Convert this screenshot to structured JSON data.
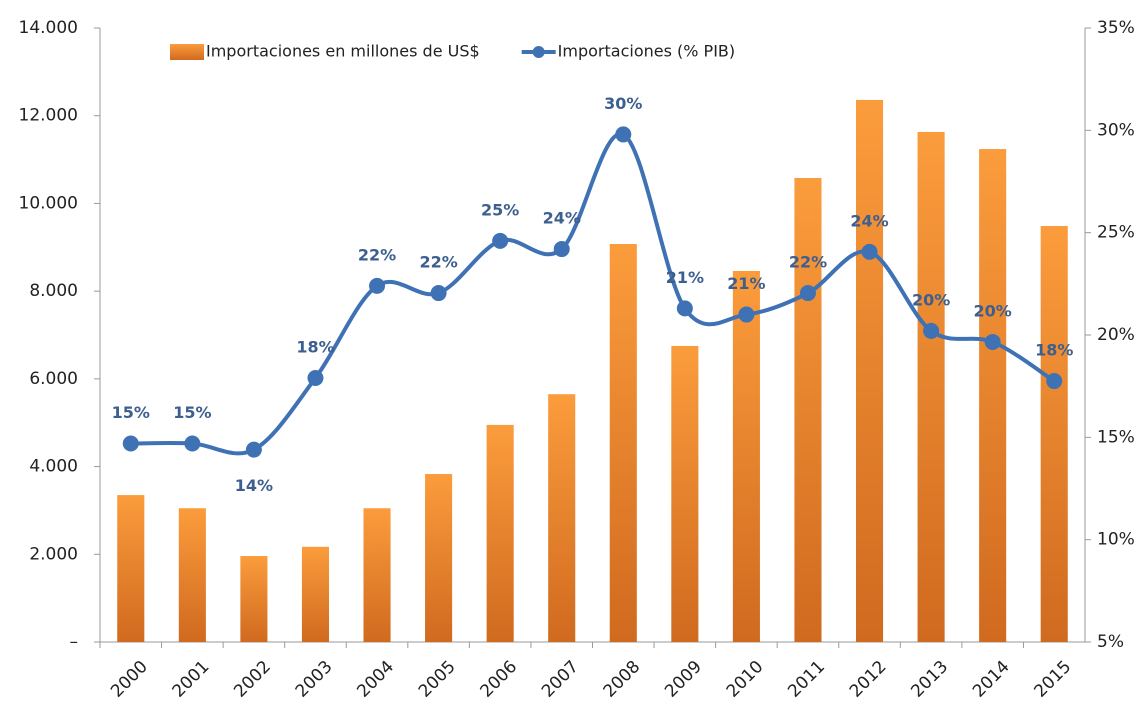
{
  "chart_data": {
    "type": "bar-line",
    "categories": [
      "2000",
      "2001",
      "2002",
      "2003",
      "2004",
      "2005",
      "2006",
      "2007",
      "2008",
      "2009",
      "2010",
      "2011",
      "2012",
      "2013",
      "2014",
      "2015"
    ],
    "series": [
      {
        "name": "Importaciones en millones de US$",
        "type": "bar",
        "color": "#f7922f",
        "values": [
          3350,
          3050,
          1960,
          2170,
          3050,
          3830,
          4950,
          5650,
          9075,
          6750,
          8460,
          10580,
          12360,
          11630,
          11240,
          9485
        ]
      },
      {
        "name": "Importaciones (% PIB)",
        "type": "line",
        "axis": "y2",
        "color": "#3f72b5",
        "smooth": true,
        "values": [
          14.7,
          14.7,
          14.4,
          17.9,
          22.4,
          22.05,
          24.6,
          24.2,
          29.8,
          21.3,
          21.0,
          22.05,
          24.06,
          20.2,
          19.66,
          17.75
        ],
        "value_labels": [
          "15%",
          "15%",
          "14%",
          "18%",
          "22%",
          "22%",
          "25%",
          "24%",
          "30%",
          "21%",
          "21%",
          "22%",
          "24%",
          "20%",
          "20%",
          "18%"
        ]
      }
    ],
    "ylim": [
      0,
      14000
    ],
    "yticks": [
      {
        "value": 0,
        "label": "–"
      },
      {
        "value": 2000,
        "label": "2.000"
      },
      {
        "value": 4000,
        "label": "4.000"
      },
      {
        "value": 6000,
        "label": "6.000"
      },
      {
        "value": 8000,
        "label": "8.000"
      },
      {
        "value": 10000,
        "label": "10.000"
      },
      {
        "value": 12000,
        "label": "12.000"
      },
      {
        "value": 14000,
        "label": "14.000"
      }
    ],
    "y2lim": [
      5,
      35
    ],
    "y2ticks": [
      {
        "value": 5,
        "label": "5%"
      },
      {
        "value": 10,
        "label": "10%"
      },
      {
        "value": 15,
        "label": "15%"
      },
      {
        "value": 20,
        "label": "20%"
      },
      {
        "value": 25,
        "label": "25%"
      },
      {
        "value": 30,
        "label": "30%"
      },
      {
        "value": 35,
        "label": "35%"
      }
    ],
    "legend": "top",
    "grid": false
  }
}
